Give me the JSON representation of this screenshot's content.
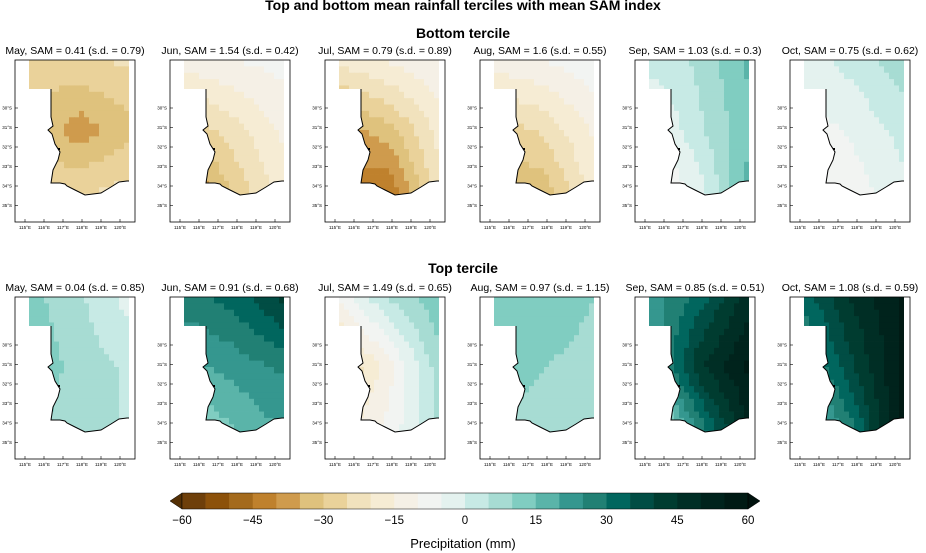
{
  "title": "Top and bottom mean rainfall terciles with mean SAM index",
  "sections": [
    {
      "title": "Bottom tercile",
      "panels": [
        {
          "label": "May, SAM = 0.41 (s.d. = 0.79)",
          "month": "May",
          "sam": 0.41,
          "sd": 0.79,
          "pattern": [
            -28,
            -26,
            -24,
            -30,
            -38,
            -32,
            -26,
            -24,
            -22
          ],
          "colors_note": "dry"
        },
        {
          "label": "Jun, SAM = 1.54 (s.d. = 0.42)",
          "month": "Jun",
          "sam": 1.54,
          "sd": 0.42,
          "pattern": [
            -12,
            -10,
            -8,
            -30,
            -22,
            -14,
            -45,
            -30,
            -18
          ]
        },
        {
          "label": "Jul, SAM = 0.79 (s.d. = 0.89)",
          "month": "Jul",
          "sam": 0.79,
          "sd": 0.89,
          "pattern": [
            -18,
            -14,
            -10,
            -38,
            -32,
            -18,
            -42,
            -46,
            -22
          ]
        },
        {
          "label": "Aug, SAM = 1.6 (s.d. = 0.55)",
          "month": "Aug",
          "sam": 1.6,
          "sd": 0.55,
          "pattern": [
            -12,
            -10,
            -6,
            -28,
            -24,
            -14,
            -38,
            -34,
            -18
          ]
        },
        {
          "label": "Sep, SAM = 1.03 (s.d. = 0.3)",
          "month": "Sep",
          "sam": 1.03,
          "sd": 0.3,
          "pattern": [
            2,
            6,
            16,
            -8,
            4,
            14,
            -12,
            -4,
            18
          ]
        },
        {
          "label": "Oct, SAM = 0.75 (s.d. = 0.62)",
          "month": "Oct",
          "sam": 0.75,
          "sd": 0.62,
          "pattern": [
            -2,
            2,
            8,
            -8,
            -4,
            2,
            -12,
            -8,
            -2
          ]
        }
      ]
    },
    {
      "title": "Top tercile",
      "panels": [
        {
          "label": "May, SAM = 0.04 (s.d. = 0.85)",
          "month": "May",
          "sam": 0.04,
          "sd": 0.85,
          "pattern": [
            12,
            6,
            -2,
            14,
            8,
            4,
            10,
            8,
            4
          ]
        },
        {
          "label": "Jun, SAM = 0.91 (s.d. = 0.68)",
          "month": "Jun",
          "sam": 0.91,
          "sd": 0.68,
          "pattern": [
            28,
            32,
            42,
            18,
            22,
            26,
            8,
            14,
            20
          ]
        },
        {
          "label": "Jul, SAM = 1.49 (s.d. = 0.65)",
          "month": "Jul",
          "sam": 1.49,
          "sd": 0.65,
          "pattern": [
            -8,
            6,
            14,
            -28,
            -12,
            8,
            -16,
            -8,
            6
          ]
        },
        {
          "label": "Aug, SAM = 0.97 (s.d. = 1.15)",
          "month": "Aug",
          "sam": 0.97,
          "sd": 1.15,
          "pattern": [
            12,
            14,
            10,
            16,
            10,
            8,
            8,
            6,
            4
          ]
        },
        {
          "label": "Sep, SAM = 0.85 (s.d. = 0.51)",
          "month": "Sep",
          "sam": 0.85,
          "sd": 0.51,
          "pattern": [
            22,
            32,
            48,
            18,
            44,
            56,
            -6,
            24,
            50
          ]
        },
        {
          "label": "Oct, SAM = 1.08 (s.d. = 0.59)",
          "month": "Oct",
          "sam": 1.08,
          "sd": 0.59,
          "pattern": [
            32,
            46,
            56,
            22,
            40,
            56,
            10,
            28,
            60
          ]
        }
      ]
    }
  ],
  "map_axes": {
    "lon_ticks": [
      "115°E",
      "116°E",
      "117°E",
      "118°E",
      "119°E",
      "120°E"
    ],
    "lat_ticks": [
      "30°S",
      "31°S",
      "32°S",
      "33°S",
      "34°S",
      "35°S"
    ]
  },
  "colorbar": {
    "label": "Precipitation (mm)",
    "min": -65,
    "max": 65,
    "step": 5,
    "tick_values": [
      -60,
      -45,
      -30,
      -15,
      0,
      15,
      30,
      45,
      60
    ],
    "tick_labels": [
      "−60",
      "−45",
      "−30",
      "−15",
      "0",
      "15",
      "30",
      "45",
      "60"
    ],
    "colors": [
      "#543005",
      "#6e3f0a",
      "#8c510a",
      "#a46a1c",
      "#bf812d",
      "#cf9b4d",
      "#dfc27d",
      "#ead29a",
      "#f1e2bd",
      "#f6ecd4",
      "#f5f0e6",
      "#f2f4f2",
      "#e4f2ef",
      "#c7eae5",
      "#a7dcd3",
      "#80cdc1",
      "#5ab4a9",
      "#35978f",
      "#218074",
      "#01665e",
      "#014d44",
      "#003c30",
      "#002e25",
      "#00231c",
      "#001a14",
      "#00120e"
    ]
  }
}
